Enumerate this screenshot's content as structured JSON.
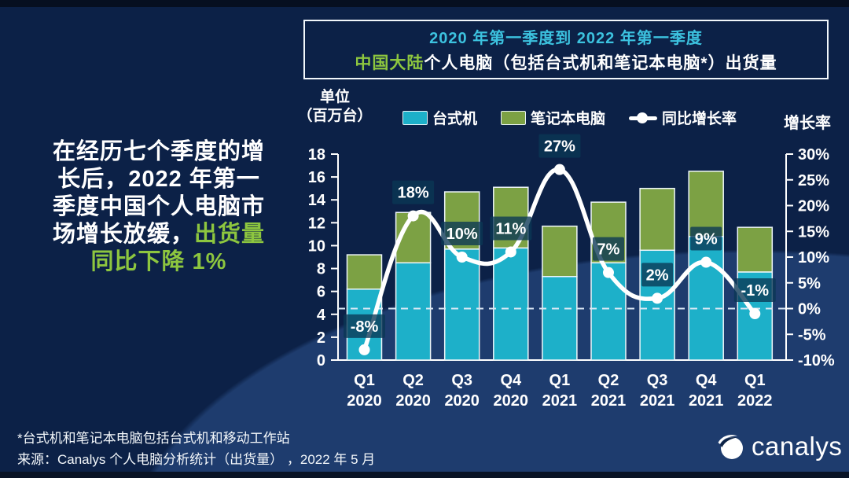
{
  "colors": {
    "desktop": "#1db0c9",
    "notebook": "#7ca144",
    "line": "#ffffff",
    "label_box": "rgba(10,55,85,0.78)",
    "title_accent": "#3cc2df",
    "green_accent": "#8dc63f",
    "background": "#0c2147"
  },
  "title": {
    "line1": "2020 年第一季度到 2022 年第一季度",
    "line2_highlight": "中国大陆",
    "line2_rest": "个人电脑（包括台式机和笔记本电脑*）出货量"
  },
  "headline": {
    "l1": "在经历七个季度的增",
    "l2": "长后，2022 年第一",
    "l3": "季度中国个人电脑市",
    "l4a": "场增长放缓，",
    "l4b": "出货量",
    "l5": "同比下降 1%"
  },
  "axis_unit_label": {
    "line1": "单位",
    "line2": "（百万台）"
  },
  "axis_rate_label": "增长率",
  "legend": {
    "items": [
      {
        "label": "台式机",
        "type": "swatch",
        "color": "#1db0c9"
      },
      {
        "label": "笔记本电脑",
        "type": "swatch",
        "color": "#7ca144"
      },
      {
        "label": "同比增长率",
        "type": "line",
        "color": "#ffffff"
      }
    ]
  },
  "chart_data": {
    "type": "bar+line",
    "title": "中国大陆个人电脑（包括台式机和笔记本电脑）出货量",
    "categories": [
      [
        "Q1",
        "2020"
      ],
      [
        "Q2",
        "2020"
      ],
      [
        "Q3",
        "2020"
      ],
      [
        "Q4",
        "2020"
      ],
      [
        "Q1",
        "2021"
      ],
      [
        "Q2",
        "2021"
      ],
      [
        "Q3",
        "2021"
      ],
      [
        "Q4",
        "2021"
      ],
      [
        "Q1",
        "2022"
      ]
    ],
    "series": [
      {
        "name": "台式机",
        "unit": "百万台",
        "values": [
          6.2,
          8.5,
          9.7,
          9.8,
          7.3,
          8.5,
          9.6,
          10.8,
          7.7
        ]
      },
      {
        "name": "笔记本电脑",
        "unit": "百万台",
        "values": [
          3.0,
          4.4,
          5.0,
          5.3,
          4.4,
          5.3,
          5.4,
          5.7,
          3.9
        ]
      }
    ],
    "line_series": {
      "name": "同比增长率",
      "values_pct": [
        -8,
        18,
        10,
        11,
        27,
        7,
        2,
        9,
        -1
      ],
      "labels": [
        "-8%",
        "18%",
        "10%",
        "11%",
        "27%",
        "7%",
        "2%",
        "9%",
        "-1%"
      ]
    },
    "left_axis": {
      "label": "单位（百万台）",
      "min": 0,
      "max": 18,
      "step": 2
    },
    "right_axis": {
      "label": "增长率",
      "min": -10,
      "max": 30,
      "step": 5,
      "suffix": "%"
    },
    "zero_reference_line_pct": 0,
    "legend_position": "top",
    "grid": false
  },
  "footer": {
    "note": "*台式机和笔记本电脑包括台式机和移动工作站",
    "source": "来源：Canalys 个人电脑分析统计（出货量） ，2022 年 5 月",
    "logo_text": "canalys"
  }
}
